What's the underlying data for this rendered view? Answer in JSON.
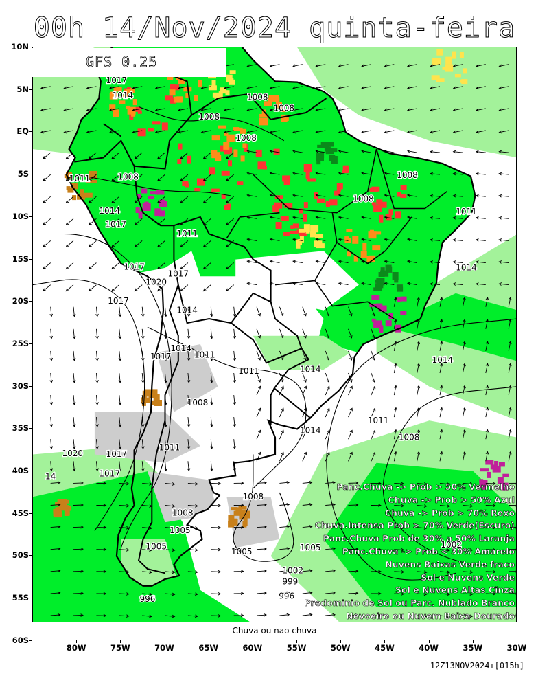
{
  "title": "00h 14/Nov/2024 quinta-feira",
  "model_label": "GFS 0.25",
  "lat_labels": [
    "10N",
    "5N",
    "EQ",
    "5S",
    "10S",
    "15S",
    "20S",
    "25S",
    "30S",
    "35S",
    "40S",
    "45S",
    "50S",
    "55S",
    "60S"
  ],
  "lon_labels": [
    "80W",
    "75W",
    "70W",
    "65W",
    "60W",
    "55W",
    "50W",
    "45W",
    "40W",
    "35W",
    "30W"
  ],
  "legend": [
    "Panc.Chuva -> Prob > 50% Vermelho",
    "Chuva -> Prob > 50% Azul",
    "Chuva -> Prob > 70% Roxo",
    "Chuva.Intensa Prob > 70% Verde(Escuro)",
    "Panc.Chuva Prob de 30% a 50% Laranja",
    "Panc.Chuva -> Prob < 30% Amarelo",
    "Nuvens Baixas Verde fraco",
    "Sol e Nuvens Verde",
    "Sol e Nuvens Altas Cinza",
    "Predominio de Sol ou Parc. Nublado Branco",
    "Nevoeiro ou Nuvem Baixa Dourado"
  ],
  "bottom_note": "Chuva ou nao chuva",
  "footer": "12Z13NOV2024+[015h]",
  "pressure_labels": [
    {
      "text": "1017",
      "lat": 5.8,
      "lon": -75.5
    },
    {
      "text": "1014",
      "lat": 4.0,
      "lon": -74.8
    },
    {
      "text": "1008",
      "lat": 3.8,
      "lon": -59.5
    },
    {
      "text": "1008",
      "lat": 1.5,
      "lon": -65.0
    },
    {
      "text": "1008",
      "lat": 2.5,
      "lon": -56.5
    },
    {
      "text": "1008",
      "lat": -1.0,
      "lon": -60.8
    },
    {
      "text": "1011",
      "lat": -5.8,
      "lon": -79.7
    },
    {
      "text": "1008",
      "lat": -5.6,
      "lon": -74.2
    },
    {
      "text": "1008",
      "lat": -5.4,
      "lon": -42.5
    },
    {
      "text": "1008",
      "lat": -8.2,
      "lon": -47.5
    },
    {
      "text": "1011",
      "lat": -9.7,
      "lon": -35.8
    },
    {
      "text": "1014",
      "lat": -9.6,
      "lon": -76.3
    },
    {
      "text": "1017",
      "lat": -11.2,
      "lon": -75.6
    },
    {
      "text": "1011",
      "lat": -12.3,
      "lon": -67.5
    },
    {
      "text": "1017",
      "lat": -16.2,
      "lon": -73.5
    },
    {
      "text": "1017",
      "lat": -17.0,
      "lon": -68.5
    },
    {
      "text": "1020",
      "lat": -18.0,
      "lon": -71.0
    },
    {
      "text": "1014",
      "lat": -16.3,
      "lon": -35.8
    },
    {
      "text": "1017",
      "lat": -20.2,
      "lon": -75.3
    },
    {
      "text": "1014",
      "lat": -21.3,
      "lon": -67.5
    },
    {
      "text": "1014",
      "lat": -25.8,
      "lon": -68.2
    },
    {
      "text": "1011",
      "lat": -26.6,
      "lon": -65.5
    },
    {
      "text": "1017",
      "lat": -26.8,
      "lon": -70.5
    },
    {
      "text": "1011",
      "lat": -28.5,
      "lon": -60.5
    },
    {
      "text": "1014",
      "lat": -28.3,
      "lon": -53.5
    },
    {
      "text": "1014",
      "lat": -27.2,
      "lon": -38.5
    },
    {
      "text": "1008",
      "lat": -32.2,
      "lon": -66.3
    },
    {
      "text": "1011",
      "lat": -34.3,
      "lon": -45.8
    },
    {
      "text": "1014",
      "lat": -35.5,
      "lon": -53.5
    },
    {
      "text": "1008",
      "lat": -36.3,
      "lon": -42.3
    },
    {
      "text": "1020",
      "lat": -38.2,
      "lon": -80.5
    },
    {
      "text": "1017",
      "lat": -38.3,
      "lon": -75.5
    },
    {
      "text": "1011",
      "lat": -37.5,
      "lon": -69.5
    },
    {
      "text": "1017",
      "lat": -40.6,
      "lon": -76.3
    },
    {
      "text": "1008",
      "lat": -43.3,
      "lon": -60.0
    },
    {
      "text": "1008",
      "lat": -45.2,
      "lon": -68.0
    },
    {
      "text": "1005",
      "lat": -47.3,
      "lon": -68.3
    },
    {
      "text": "1005",
      "lat": -49.2,
      "lon": -71.0
    },
    {
      "text": "1005",
      "lat": -49.8,
      "lon": -61.3
    },
    {
      "text": "1005",
      "lat": -49.3,
      "lon": -53.5
    },
    {
      "text": "1002",
      "lat": -49.0,
      "lon": -37.5
    },
    {
      "text": "1002",
      "lat": -52.0,
      "lon": -55.5
    },
    {
      "text": "999",
      "lat": -53.3,
      "lon": -55.8
    },
    {
      "text": "996",
      "lat": -55.0,
      "lon": -56.2
    },
    {
      "text": "996",
      "lat": -55.4,
      "lon": -72.0
    },
    {
      "text": "14",
      "lat": -40.9,
      "lon": -83.0
    }
  ]
}
